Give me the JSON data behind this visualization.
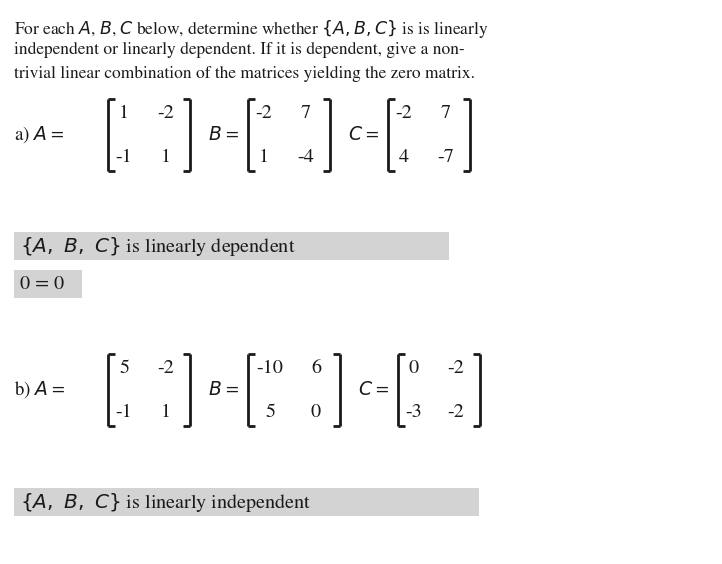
{
  "bg_color": "#ffffff",
  "text_color": "#1a1a1a",
  "highlight_bg": "#d3d3d3",
  "figsize": [
    7.22,
    5.64
  ],
  "dpi": 100,
  "intro_lines": [
    "For each $A$, $B$, $C$ below, determine whether $\\{A, B, C\\}$ is is linearly",
    "independent or linearly dependent. If it is dependent, give a non-",
    "trivial linear combination of the matrices yielding the zero matrix."
  ],
  "part_a": {
    "label": "a)",
    "A": [
      [
        "1",
        "-2"
      ],
      [
        "-1",
        "1"
      ]
    ],
    "B": [
      [
        "-2",
        "7"
      ],
      [
        "1",
        "-4"
      ]
    ],
    "C": [
      [
        "-2",
        "7"
      ],
      [
        "4",
        "-7"
      ]
    ],
    "result": "$\\{A,\\ B,\\ C\\}$ is linearly dependent",
    "equation": "0 = 0"
  },
  "part_b": {
    "label": "b)",
    "A": [
      [
        "5",
        "-2"
      ],
      [
        "-1",
        "1"
      ]
    ],
    "B": [
      [
        "-10",
        "6"
      ],
      [
        "5",
        "0"
      ]
    ],
    "C": [
      [
        "0",
        "-2"
      ],
      [
        "-3",
        "-2"
      ]
    ],
    "result": "$\\{A,\\ B,\\ C\\}$ is linearly independent"
  }
}
